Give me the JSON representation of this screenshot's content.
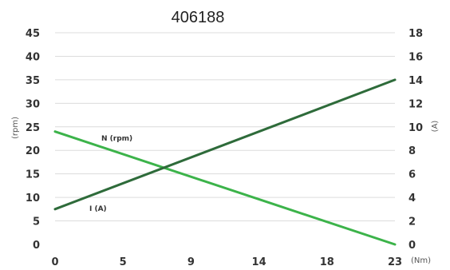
{
  "chart_data": {
    "type": "line",
    "title": "406188",
    "x_unit": "(Nm)",
    "y_left_unit": "(rpm)",
    "y_right_unit": "(A)",
    "x_ticks": [
      "0",
      "5",
      "9",
      "14",
      "18",
      "23"
    ],
    "x_tick_values": [
      0,
      4.6,
      9.2,
      13.8,
      18.4,
      23
    ],
    "xlim": [
      0,
      23
    ],
    "y_left_ticks": [
      "0",
      "5",
      "10",
      "15",
      "20",
      "25",
      "30",
      "35",
      "40",
      "45"
    ],
    "y_left_lim": [
      0,
      45
    ],
    "y_right_ticks": [
      "0",
      "2",
      "4",
      "6",
      "8",
      "10",
      "12",
      "14",
      "16",
      "18"
    ],
    "y_right_lim": [
      0,
      18
    ],
    "grid": true,
    "series": [
      {
        "name": "N (rpm)",
        "axis": "left",
        "color": "#3cb34a",
        "x": [
          0,
          23
        ],
        "y": [
          24,
          0
        ]
      },
      {
        "name": "I (A)",
        "axis": "right",
        "color": "#2e6b3a",
        "x": [
          0,
          23
        ],
        "y": [
          3,
          14
        ]
      }
    ]
  }
}
